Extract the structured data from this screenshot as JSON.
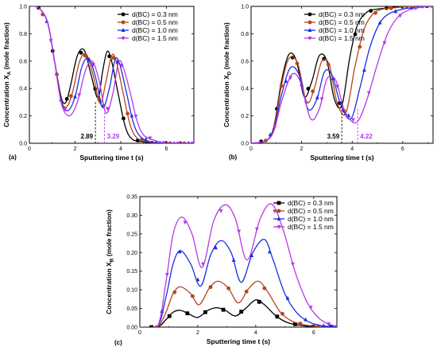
{
  "colors": [
    "#000000",
    "#b5461a",
    "#1a2ee0",
    "#b438e8"
  ],
  "chart_data": [
    {
      "type": "line",
      "panel_label": "(a)",
      "xlabel": "Sputtering time t (s)",
      "ylabel": "Concentration X",
      "ylabel_sub": "A",
      "ylabel_suffix": " (mole fraction)",
      "xlim": [
        0,
        7.2
      ],
      "ylim": [
        0,
        1.0
      ],
      "xticks": [
        0,
        2,
        4,
        6
      ],
      "yticks": [
        0.0,
        0.2,
        0.4,
        0.6,
        0.8,
        1.0
      ],
      "ytick_labels": [
        "0.0",
        "0.2",
        "0.4",
        "0.6",
        "0.8",
        "1.0"
      ],
      "legend_position": "top-right",
      "annotations": [
        {
          "text": "2.89",
          "x": 2.89,
          "color": "#000000"
        },
        {
          "text": "3.29",
          "x": 3.29,
          "color": "#b438e8"
        }
      ],
      "markers": [
        "circle",
        "circle",
        "triangle-up",
        "triangle-down"
      ],
      "series": [
        {
          "name": "d(BC) = 0.3 nm",
          "x": [
            0,
            0.4,
            0.8,
            1.1,
            1.4,
            1.6,
            1.8,
            2.1,
            2.4,
            2.7,
            3.0,
            3.2,
            3.4,
            3.6,
            3.9,
            4.2,
            4.5,
            5.0,
            5.5,
            6.0,
            7.2
          ],
          "y": [
            1.0,
            0.99,
            0.88,
            0.6,
            0.33,
            0.3,
            0.42,
            0.64,
            0.68,
            0.5,
            0.33,
            0.52,
            0.67,
            0.6,
            0.35,
            0.12,
            0.03,
            0.01,
            0.0,
            0.0,
            0.0
          ]
        },
        {
          "name": "d(BC) = 0.5 nm",
          "x": [
            0,
            0.4,
            0.8,
            1.1,
            1.4,
            1.65,
            1.9,
            2.2,
            2.5,
            2.8,
            3.1,
            3.35,
            3.6,
            3.8,
            4.1,
            4.4,
            4.7,
            5.2,
            5.7,
            6.2,
            7.2
          ],
          "y": [
            1.0,
            0.99,
            0.88,
            0.6,
            0.31,
            0.27,
            0.38,
            0.6,
            0.65,
            0.49,
            0.29,
            0.45,
            0.64,
            0.6,
            0.37,
            0.14,
            0.04,
            0.01,
            0.0,
            0.0,
            0.0
          ]
        },
        {
          "name": "d(BC) = 1.0 nm",
          "x": [
            0,
            0.4,
            0.8,
            1.1,
            1.4,
            1.7,
            2.0,
            2.3,
            2.6,
            2.9,
            3.2,
            3.5,
            3.75,
            3.95,
            4.25,
            4.55,
            4.85,
            5.3,
            5.8,
            6.3,
            7.2
          ],
          "y": [
            1.0,
            0.99,
            0.88,
            0.6,
            0.3,
            0.24,
            0.34,
            0.56,
            0.62,
            0.48,
            0.26,
            0.4,
            0.61,
            0.58,
            0.37,
            0.15,
            0.05,
            0.01,
            0.0,
            0.0,
            0.0
          ]
        },
        {
          "name": "d(BC) = 1.5 nm",
          "x": [
            0,
            0.4,
            0.8,
            1.1,
            1.4,
            1.75,
            2.1,
            2.45,
            2.75,
            3.05,
            3.35,
            3.65,
            3.9,
            4.1,
            4.4,
            4.7,
            5.0,
            5.5,
            6.0,
            6.5,
            7.2
          ],
          "y": [
            1.0,
            0.99,
            0.88,
            0.6,
            0.29,
            0.2,
            0.3,
            0.53,
            0.6,
            0.46,
            0.22,
            0.36,
            0.59,
            0.56,
            0.38,
            0.17,
            0.06,
            0.02,
            0.0,
            0.0,
            0.0
          ]
        }
      ]
    },
    {
      "type": "line",
      "panel_label": "(b)",
      "xlabel": "Sputtering time t (s)",
      "ylabel": "Concentration X",
      "ylabel_sub": "D",
      "ylabel_suffix": " (mole fraction)",
      "xlim": [
        0,
        7.2
      ],
      "ylim": [
        0,
        1.0
      ],
      "xticks": [
        0,
        2,
        4,
        6
      ],
      "yticks": [
        0.0,
        0.2,
        0.4,
        0.6,
        0.8,
        1.0
      ],
      "ytick_labels": [
        "0.0",
        "0.2",
        "0.4",
        "0.6",
        "0.8",
        "1.0"
      ],
      "legend_position": "top-left",
      "annotations": [
        {
          "text": "3.59",
          "x": 3.59,
          "color": "#000000"
        },
        {
          "text": "4.22",
          "x": 4.22,
          "color": "#b438e8"
        }
      ],
      "markers": [
        "circle",
        "circle",
        "triangle-up",
        "triangle-down"
      ],
      "series": [
        {
          "name": "d(BC) = 0.3 nm",
          "x": [
            0,
            0.6,
            0.9,
            1.2,
            1.5,
            1.8,
            2.1,
            2.4,
            2.7,
            3.0,
            3.3,
            3.6,
            3.9,
            4.2,
            4.6,
            5.0,
            5.5,
            6.0,
            6.6,
            7.2
          ],
          "y": [
            0.0,
            0.02,
            0.12,
            0.45,
            0.65,
            0.6,
            0.34,
            0.45,
            0.64,
            0.6,
            0.32,
            0.28,
            0.62,
            0.86,
            0.96,
            0.98,
            0.99,
            1.0,
            1.0,
            1.0
          ]
        },
        {
          "name": "d(BC) = 0.5 nm",
          "x": [
            0,
            0.6,
            0.9,
            1.2,
            1.5,
            1.85,
            2.2,
            2.5,
            2.8,
            3.1,
            3.4,
            3.75,
            4.1,
            4.45,
            4.8,
            5.2,
            5.7,
            6.2,
            6.7,
            7.2
          ],
          "y": [
            0.0,
            0.02,
            0.11,
            0.42,
            0.62,
            0.58,
            0.3,
            0.4,
            0.6,
            0.57,
            0.3,
            0.22,
            0.55,
            0.82,
            0.94,
            0.98,
            0.99,
            1.0,
            1.0,
            1.0
          ]
        },
        {
          "name": "d(BC) = 1.0 nm",
          "x": [
            0,
            0.6,
            0.9,
            1.2,
            1.55,
            1.9,
            2.25,
            2.6,
            2.9,
            3.2,
            3.55,
            3.95,
            4.3,
            4.7,
            5.1,
            5.5,
            6.0,
            6.4,
            6.8,
            7.2
          ],
          "y": [
            0.0,
            0.02,
            0.1,
            0.35,
            0.55,
            0.5,
            0.25,
            0.32,
            0.52,
            0.5,
            0.28,
            0.18,
            0.4,
            0.7,
            0.88,
            0.95,
            0.98,
            0.99,
            1.0,
            1.0
          ]
        },
        {
          "name": "d(BC) = 1.5 nm",
          "x": [
            0,
            0.6,
            0.9,
            1.2,
            1.6,
            1.95,
            2.35,
            2.7,
            3.0,
            3.35,
            3.7,
            4.15,
            4.55,
            5.0,
            5.4,
            5.8,
            6.2,
            6.6,
            6.9,
            7.2
          ],
          "y": [
            0.0,
            0.02,
            0.09,
            0.3,
            0.5,
            0.45,
            0.18,
            0.25,
            0.47,
            0.46,
            0.24,
            0.15,
            0.3,
            0.58,
            0.8,
            0.92,
            0.97,
            0.99,
            1.0,
            1.0
          ]
        }
      ]
    },
    {
      "type": "line",
      "panel_label": "(c)",
      "xlabel": "Sputtering time t (s)",
      "ylabel": "Concentration X",
      "ylabel_sub": "B",
      "ylabel_suffix": " (mole fraction)",
      "xlim": [
        0,
        6.8
      ],
      "ylim": [
        0,
        0.35
      ],
      "xticks": [
        0,
        2,
        4,
        6
      ],
      "yticks": [
        0.0,
        0.05,
        0.1,
        0.15,
        0.2,
        0.25,
        0.3,
        0.35
      ],
      "ytick_labels": [
        "0.00",
        "0.05",
        "0.10",
        "0.15",
        "0.20",
        "0.25",
        "0.30",
        "0.35"
      ],
      "legend_position": "top-right",
      "annotations": [],
      "markers": [
        "square",
        "circle",
        "triangle-up",
        "triangle-down"
      ],
      "series": [
        {
          "name": "d(BC) = 0.3 nm",
          "x": [
            0,
            0.6,
            0.9,
            1.15,
            1.4,
            1.7,
            2.0,
            2.35,
            2.65,
            2.95,
            3.3,
            3.65,
            4.0,
            4.3,
            4.7,
            5.1,
            5.6,
            6.0,
            6.5,
            6.8
          ],
          "y": [
            0.0,
            0.0,
            0.02,
            0.04,
            0.045,
            0.035,
            0.026,
            0.045,
            0.052,
            0.045,
            0.03,
            0.05,
            0.073,
            0.06,
            0.03,
            0.012,
            0.004,
            0.001,
            0.0,
            0.0
          ]
        },
        {
          "name": "d(BC) = 0.5 nm",
          "x": [
            0,
            0.6,
            0.9,
            1.15,
            1.4,
            1.75,
            2.05,
            2.4,
            2.7,
            3.05,
            3.4,
            3.75,
            4.1,
            4.45,
            4.85,
            5.25,
            5.7,
            6.1,
            6.5,
            6.8
          ],
          "y": [
            0.0,
            0.0,
            0.04,
            0.09,
            0.108,
            0.09,
            0.06,
            0.105,
            0.123,
            0.105,
            0.065,
            0.103,
            0.123,
            0.09,
            0.04,
            0.016,
            0.006,
            0.002,
            0.0,
            0.0
          ]
        },
        {
          "name": "d(BC) = 1.0 nm",
          "x": [
            0,
            0.6,
            0.9,
            1.15,
            1.4,
            1.75,
            2.1,
            2.45,
            2.8,
            3.15,
            3.5,
            3.9,
            4.3,
            4.6,
            5.0,
            5.4,
            5.8,
            6.2,
            6.5,
            6.8
          ],
          "y": [
            0.0,
            0.0,
            0.08,
            0.17,
            0.205,
            0.17,
            0.11,
            0.195,
            0.232,
            0.2,
            0.12,
            0.2,
            0.235,
            0.18,
            0.09,
            0.04,
            0.015,
            0.005,
            0.002,
            0.0
          ]
        },
        {
          "name": "d(BC) = 1.5 nm",
          "x": [
            0,
            0.6,
            0.9,
            1.15,
            1.45,
            1.8,
            2.15,
            2.55,
            2.95,
            3.3,
            3.7,
            4.15,
            4.55,
            4.95,
            5.35,
            5.75,
            6.1,
            6.4,
            6.6,
            6.8
          ],
          "y": [
            0.0,
            0.0,
            0.12,
            0.25,
            0.295,
            0.25,
            0.16,
            0.285,
            0.328,
            0.29,
            0.18,
            0.29,
            0.33,
            0.26,
            0.15,
            0.07,
            0.03,
            0.012,
            0.006,
            0.003
          ]
        }
      ]
    }
  ]
}
